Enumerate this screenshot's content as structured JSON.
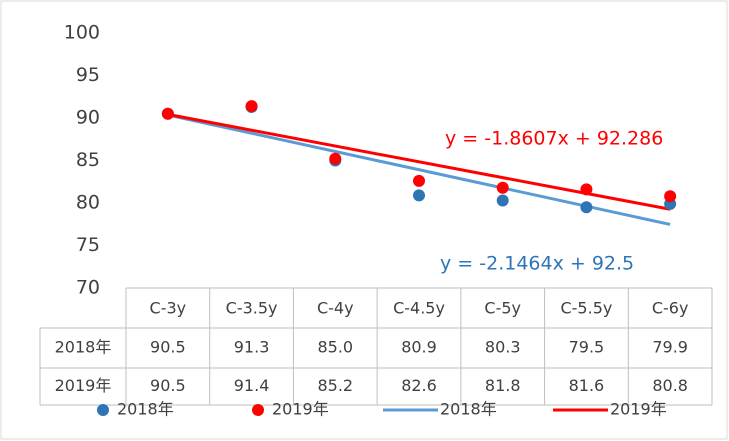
{
  "chart_data": {
    "type": "scatter",
    "categories": [
      "C-3y",
      "C-3.5y",
      "C-4y",
      "C-4.5y",
      "C-5y",
      "C-5.5y",
      "C-6y"
    ],
    "series": [
      {
        "name": "2018年",
        "color": "#2e75b6",
        "values": [
          90.5,
          91.3,
          85.0,
          80.9,
          80.3,
          79.5,
          79.9
        ],
        "value_labels": [
          "90.5",
          "91.3",
          "85.0",
          "80.9",
          "80.3",
          "79.5",
          "79.9"
        ]
      },
      {
        "name": "2019年",
        "color": "#ff0000",
        "values": [
          90.5,
          91.4,
          85.2,
          82.6,
          81.8,
          81.6,
          80.8
        ],
        "value_labels": [
          "90.5",
          "91.4",
          "85.2",
          "82.6",
          "81.8",
          "81.6",
          "80.8"
        ]
      }
    ],
    "trendlines": [
      {
        "name": "2018年",
        "color": "#5b9bd5",
        "slope": -2.1464,
        "intercept": 92.5,
        "label": "y = -2.1464x + 92.5"
      },
      {
        "name": "2019年",
        "color": "#ff0000",
        "slope": -1.8607,
        "intercept": 92.286,
        "label": "y = -1.8607x + 92.286"
      }
    ],
    "ylim": [
      70,
      100
    ],
    "yticks": [
      70,
      75,
      80,
      85,
      90,
      95,
      100
    ],
    "grid": false
  }
}
